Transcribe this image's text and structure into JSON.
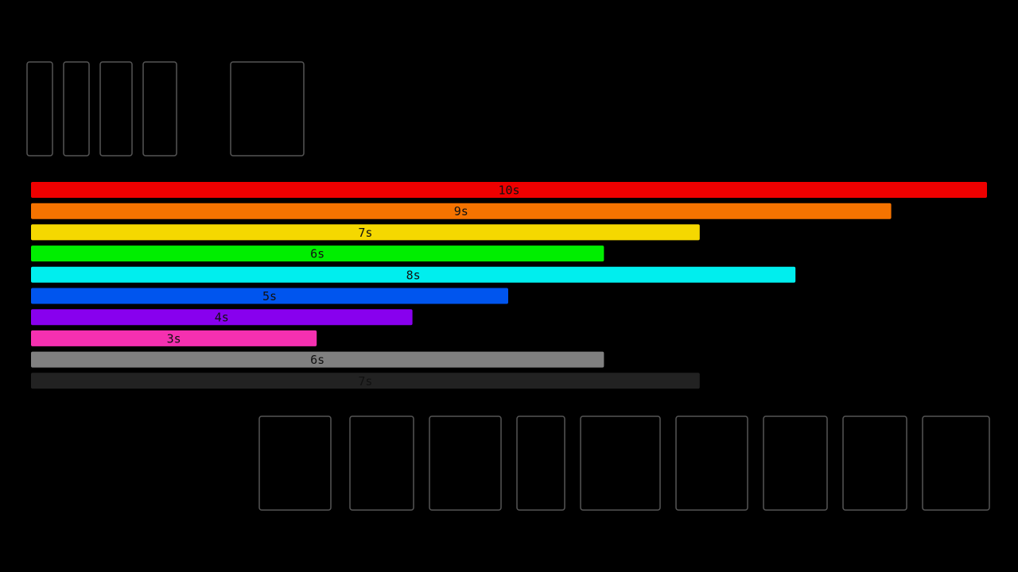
{
  "chart_data": {
    "type": "bar",
    "orientation": "horizontal",
    "values": [
      10,
      9,
      7,
      6,
      8,
      5,
      4,
      3,
      6,
      7
    ],
    "value_labels": [
      "10s",
      "9s",
      "7s",
      "6s",
      "8s",
      "5s",
      "4s",
      "3s",
      "6s",
      "7s"
    ],
    "colors": [
      "#ee0000",
      "#f57300",
      "#f5d800",
      "#00ee00",
      "#00eeee",
      "#0055ee",
      "#8800ee",
      "#f530b0",
      "#808080",
      "#222222"
    ],
    "xlim": [
      0,
      10
    ]
  }
}
